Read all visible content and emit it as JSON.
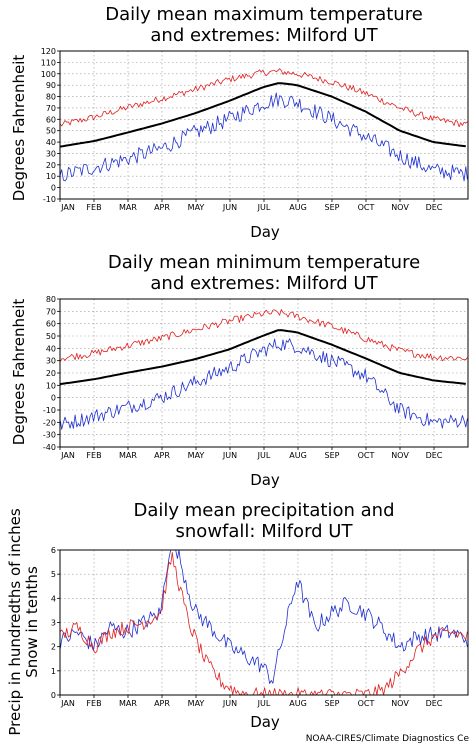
{
  "credit": "NOAA-CIRES/Climate Diagnostics Ce",
  "colors": {
    "extreme_high": "#e02020",
    "mean": "#000000",
    "extreme_low": "#2030d0"
  },
  "chart_data": [
    {
      "type": "line",
      "title_lines": [
        "Daily mean maximum temperature",
        "and extremes: Milford UT"
      ],
      "xlabel": "Day",
      "ylabel_lines": [
        "Degrees Fahrenheit"
      ],
      "months": [
        "JAN",
        "FEB",
        "MAR",
        "APR",
        "MAY",
        "JUN",
        "JUL",
        "AUG",
        "SEP",
        "OCT",
        "NOV",
        "DEC"
      ],
      "xlim": [
        0,
        365
      ],
      "ylim": [
        -10,
        120
      ],
      "yticks": [
        -10,
        0,
        10,
        20,
        30,
        40,
        50,
        60,
        70,
        80,
        90,
        100,
        110,
        120
      ],
      "grid": true,
      "series": [
        {
          "color_key": "extreme_high",
          "noise": 3,
          "x": [
            0,
            31,
            59,
            90,
            120,
            151,
            181,
            196,
            212,
            243,
            273,
            304,
            334,
            365
          ],
          "y": [
            55,
            62,
            70,
            78,
            86,
            95,
            101,
            102,
            100,
            93,
            83,
            70,
            60,
            55
          ]
        },
        {
          "color_key": "mean",
          "noise": 0,
          "x": [
            0,
            31,
            59,
            90,
            120,
            151,
            181,
            196,
            212,
            243,
            273,
            304,
            334,
            365
          ],
          "y": [
            36,
            41,
            48,
            56,
            65,
            76,
            88,
            92,
            90,
            80,
            67,
            50,
            40,
            36
          ]
        },
        {
          "color_key": "extreme_low",
          "noise": 7,
          "x": [
            0,
            31,
            59,
            90,
            120,
            151,
            181,
            196,
            212,
            243,
            273,
            304,
            334,
            365
          ],
          "y": [
            10,
            18,
            25,
            34,
            48,
            60,
            74,
            78,
            75,
            60,
            45,
            28,
            15,
            12
          ]
        }
      ]
    },
    {
      "type": "line",
      "title_lines": [
        "Daily mean minimum temperature",
        "and extremes: Milford UT"
      ],
      "xlabel": "Day",
      "ylabel_lines": [
        "Degrees Fahrenheit"
      ],
      "months": [
        "JAN",
        "FEB",
        "MAR",
        "APR",
        "MAY",
        "JUN",
        "JUL",
        "AUG",
        "SEP",
        "OCT",
        "NOV",
        "DEC"
      ],
      "xlim": [
        0,
        365
      ],
      "ylim": [
        -40,
        80
      ],
      "yticks": [
        -40,
        -30,
        -20,
        -10,
        0,
        10,
        20,
        30,
        40,
        50,
        60,
        70,
        80
      ],
      "grid": true,
      "series": [
        {
          "color_key": "extreme_high",
          "noise": 3,
          "x": [
            0,
            31,
            59,
            90,
            120,
            151,
            181,
            196,
            212,
            243,
            273,
            304,
            334,
            365
          ],
          "y": [
            32,
            36,
            42,
            48,
            55,
            62,
            68,
            69,
            66,
            58,
            48,
            38,
            33,
            32
          ]
        },
        {
          "color_key": "mean",
          "noise": 0,
          "x": [
            0,
            31,
            59,
            90,
            120,
            151,
            181,
            196,
            212,
            243,
            273,
            304,
            334,
            365
          ],
          "y": [
            11,
            15,
            20,
            25,
            31,
            39,
            50,
            55,
            53,
            43,
            32,
            20,
            14,
            11
          ]
        },
        {
          "color_key": "extreme_low",
          "noise": 6,
          "x": [
            0,
            31,
            59,
            90,
            120,
            151,
            181,
            196,
            212,
            243,
            273,
            304,
            334,
            365
          ],
          "y": [
            -22,
            -15,
            -8,
            0,
            12,
            24,
            38,
            44,
            42,
            30,
            18,
            -10,
            -20,
            -18
          ]
        }
      ]
    },
    {
      "type": "line",
      "title_lines": [
        "Daily mean precipitation and",
        "snowfall: Milford UT"
      ],
      "xlabel": "Day",
      "ylabel_lines": [
        "Precip in hundredths of inches",
        "Snow in tenths"
      ],
      "months": [
        "JAN",
        "FEB",
        "MAR",
        "APR",
        "MAY",
        "JUN",
        "JUL",
        "AUG",
        "SEP",
        "OCT",
        "NOV",
        "DEC"
      ],
      "xlim": [
        0,
        365
      ],
      "ylim": [
        0,
        6
      ],
      "yticks": [
        0,
        1,
        2,
        3,
        4,
        5,
        6
      ],
      "grid": true,
      "series": [
        {
          "color_key": "extreme_low",
          "noise": 0.35,
          "x": [
            0,
            15,
            31,
            45,
            59,
            75,
            90,
            100,
            120,
            135,
            151,
            166,
            181,
            190,
            212,
            228,
            243,
            258,
            273,
            288,
            304,
            319,
            334,
            350,
            365
          ],
          "y": [
            2.2,
            2.6,
            2.0,
            2.8,
            2.6,
            3.0,
            3.4,
            6.8,
            3.5,
            2.8,
            2.0,
            1.6,
            1.2,
            0.6,
            4.8,
            2.8,
            3.4,
            3.8,
            3.4,
            2.8,
            2.0,
            2.4,
            2.5,
            2.6,
            2.3
          ]
        },
        {
          "color_key": "extreme_high",
          "noise": 0.3,
          "x": [
            0,
            15,
            31,
            45,
            59,
            75,
            90,
            100,
            115,
            130,
            145,
            160,
            181,
            212,
            243,
            273,
            290,
            304,
            319,
            334,
            350,
            365
          ],
          "y": [
            2.4,
            2.8,
            2.0,
            2.6,
            2.8,
            3.0,
            3.4,
            5.8,
            3.0,
            1.4,
            0.5,
            0.1,
            0.0,
            0.0,
            0.0,
            0.0,
            0.2,
            0.9,
            1.8,
            2.4,
            2.6,
            2.4
          ]
        }
      ]
    }
  ]
}
